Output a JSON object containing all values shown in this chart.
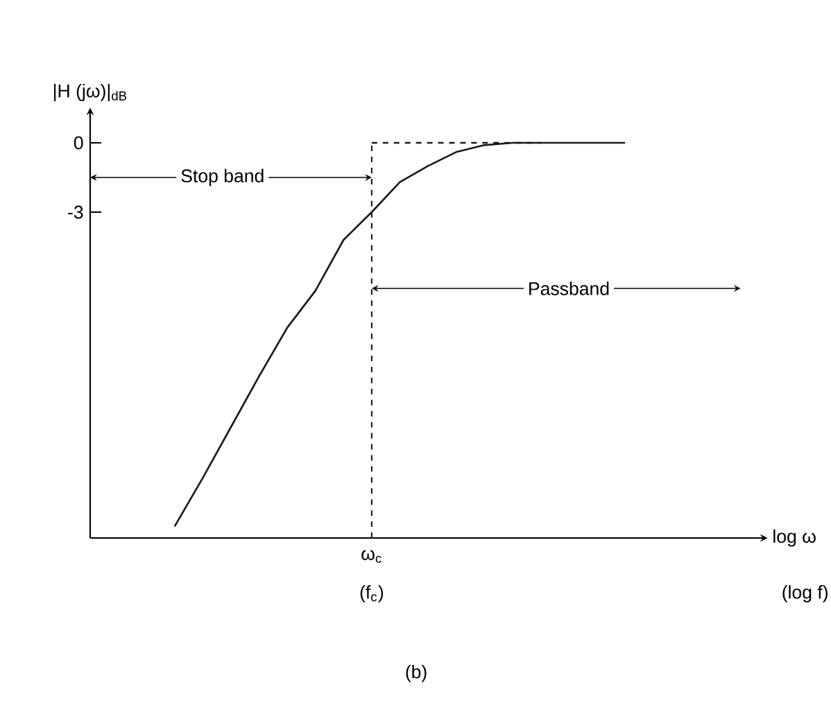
{
  "chart_data": {
    "type": "line",
    "ylabel": "|H (jω)|$_{dB}$",
    "xlabel": "log ω",
    "categories": [
      null,
      null,
      null,
      null,
      null,
      null,
      null,
      null,
      null,
      null,
      "ω$_{c}$",
      null,
      null,
      null,
      null,
      null,
      null,
      null,
      null,
      null,
      null,
      null,
      null,
      null
    ],
    "series": [
      {
        "color": "#1a1a1a",
        "line_style": "solid",
        "values": [
          null,
          null,
          null,
          -16.6,
          -14.5,
          -12.3,
          -10.1,
          -8.0,
          -6.4,
          -4.2,
          -3,
          -1.7,
          -1.0,
          -0.4,
          -0.1,
          0,
          0,
          0,
          0,
          0,
          null,
          null,
          null,
          null
        ]
      },
      {
        "color": "#1a1a1a",
        "line_style": "dashed",
        "values": [
          null,
          null,
          null,
          null,
          null,
          null,
          null,
          null,
          null,
          null,
          0,
          0,
          0,
          0,
          0,
          0,
          0,
          null,
          null,
          null,
          null,
          null,
          null,
          null
        ]
      }
    ],
    "ylim": [
      -17.1,
      1.2
    ],
    "yticks": [
      0,
      -3
    ],
    "marker": "none",
    "ref_lines": [
      {
        "axis": "x",
        "value": "ω$_{c}$",
        "line_style": "dashed",
        "color": "#1a1a1a"
      }
    ],
    "annotations": [
      "Stop band",
      "Passband",
      "(f$_{c}$)",
      "(log f)",
      "(b)"
    ]
  }
}
